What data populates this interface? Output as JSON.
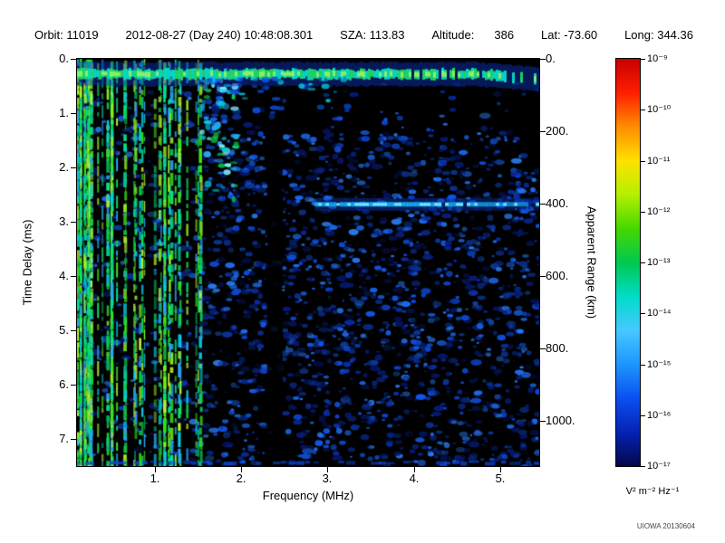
{
  "header": {
    "orbit": "Orbit: 11019",
    "datetime": "2012-08-27 (Day 240) 10:48:08.301",
    "sza": "SZA: 113.83",
    "altitude_label": "Altitude:",
    "altitude_value": "386",
    "lat": "Lat: -73.60",
    "long": "Long: 344.36"
  },
  "chart_data": {
    "type": "heatmap",
    "description": "Radar sounder ionogram spectrogram: received spectral density versus sounding frequency and echo time delay",
    "xlabel": "Frequency (MHz)",
    "ylabel": "Time Delay (ms)",
    "y2label": "Apparent Range (km)",
    "x_range_mhz": [
      0.1,
      5.45
    ],
    "x_ticks": [
      "1.",
      "2.",
      "3.",
      "4.",
      "5."
    ],
    "y_range_ms": [
      0,
      7.5
    ],
    "y_ticks": [
      "0.",
      "1.",
      "2.",
      "3.",
      "4.",
      "5.",
      "6.",
      "7."
    ],
    "y2_range_km": [
      0,
      1124
    ],
    "y2_ticks": [
      "0.",
      "200.",
      "400.",
      "600.",
      "800.",
      "1000."
    ],
    "colorbar": {
      "scale": "log",
      "units": "V² m⁻² Hz⁻¹",
      "tick_labels": [
        "10⁻⁹",
        "10⁻¹⁰",
        "10⁻¹¹",
        "10⁻¹²",
        "10⁻¹³",
        "10⁻¹⁴",
        "10⁻¹⁵",
        "10⁻¹⁶",
        "10⁻¹⁷"
      ],
      "colors_top_to_bottom": [
        "#c80000",
        "#ff1e00",
        "#ff8c00",
        "#ffe100",
        "#b4f000",
        "#46d800",
        "#00c850",
        "#00dcc8",
        "#46c8ff",
        "#1e96ff",
        "#0a50f0",
        "#0522b4",
        "#02084b"
      ]
    },
    "seed": 20130604,
    "features": {
      "background_speckle": {
        "count": 3200
      },
      "plasma_harmonic_stripes": {
        "f_min_mhz": 0.1,
        "f_max_mhz": 1.55,
        "count": 62,
        "gap_lanes_mhz": [
          [
            0.93,
            1.03
          ],
          [
            1.33,
            1.42
          ]
        ]
      },
      "cusp_cluster": {
        "f_min_mhz": 1.55,
        "f_max_mhz": 1.95,
        "delay_min_ms": 0.3,
        "delay_max_ms": 2.6
      },
      "direct_signal_band": {
        "delay_ms": 0.28,
        "thickness_ms": 0.17,
        "solid_until_mhz": 3.9,
        "droop_after_mhz": 4.7
      },
      "surface_echo_band": {
        "delay_ms": 2.68,
        "f_start_mhz": 2.85,
        "f_end_mhz": 5.45,
        "apparent_range_km": 402
      },
      "attenuation_lanes_mhz": [
        2.3,
        2.48
      ],
      "bottom_edge_band_delay_ms": 7.42
    }
  },
  "watermark": "UIOWA 20130604"
}
